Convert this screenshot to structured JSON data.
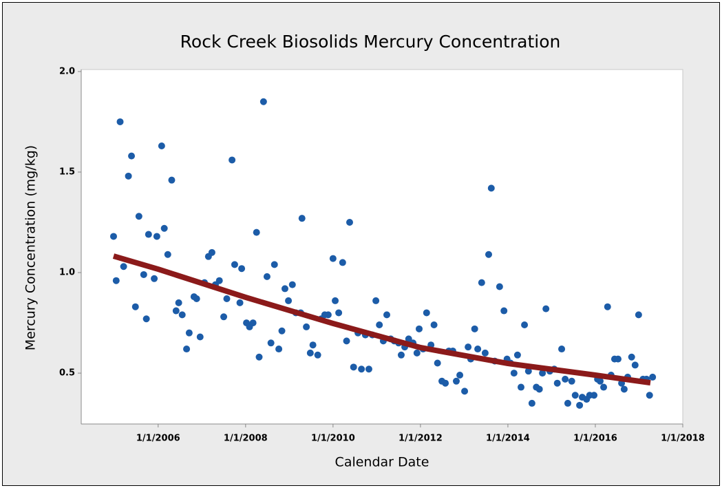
{
  "chart_data": {
    "type": "scatter",
    "title": "Rock Creek Biosolids Mercury Concentration",
    "x_label": "Calendar Date",
    "y_label": "Mercury Concentration (mg/kg)",
    "xlim": [
      2004.24,
      2018
    ],
    "ylim": [
      0.247,
      2.01
    ],
    "xticks": [
      {
        "value": 2006,
        "label": "1/1/2006"
      },
      {
        "value": 2008,
        "label": "1/1/2008"
      },
      {
        "value": 2010,
        "label": "1/1/2010"
      },
      {
        "value": 2012,
        "label": "1/1/2012"
      },
      {
        "value": 2014,
        "label": "1/1/2014"
      },
      {
        "value": 2016,
        "label": "1/1/2016"
      },
      {
        "value": 2018,
        "label": "1/1/2018"
      }
    ],
    "yticks": [
      {
        "value": 0.5,
        "label": "0.5"
      },
      {
        "value": 1.0,
        "label": "1.0"
      },
      {
        "value": 1.5,
        "label": "1.5"
      },
      {
        "value": 2.0,
        "label": "2.0"
      }
    ],
    "points": {
      "color": "#1c5ca8",
      "x": [
        2004.98,
        2005.04,
        2005.13,
        2005.21,
        2005.32,
        2005.39,
        2005.48,
        2005.56,
        2005.67,
        2005.73,
        2005.78,
        2005.91,
        2005.97,
        2006.08,
        2006.14,
        2006.22,
        2006.31,
        2006.41,
        2006.47,
        2006.55,
        2006.65,
        2006.71,
        2006.82,
        2006.88,
        2006.96,
        2007.06,
        2007.15,
        2007.23,
        2007.31,
        2007.4,
        2007.5,
        2007.57,
        2007.69,
        2007.75,
        2007.87,
        2007.91,
        2008.02,
        2008.09,
        2008.17,
        2008.25,
        2008.31,
        2008.41,
        2008.49,
        2008.58,
        2008.66,
        2008.76,
        2008.83,
        2008.9,
        2008.98,
        2009.07,
        2009.15,
        2009.26,
        2009.29,
        2009.39,
        2009.48,
        2009.54,
        2009.65,
        2009.73,
        2009.81,
        2009.89,
        2010.0,
        2010.05,
        2010.13,
        2010.22,
        2010.31,
        2010.38,
        2010.47,
        2010.57,
        2010.65,
        2010.74,
        2010.82,
        2010.9,
        2010.98,
        2011.06,
        2011.15,
        2011.23,
        2011.32,
        2011.4,
        2011.5,
        2011.56,
        2011.64,
        2011.73,
        2011.83,
        2011.92,
        2011.97,
        2012.06,
        2012.14,
        2012.24,
        2012.31,
        2012.39,
        2012.49,
        2012.57,
        2012.65,
        2012.74,
        2012.82,
        2012.9,
        2013.01,
        2013.09,
        2013.15,
        2013.24,
        2013.31,
        2013.4,
        2013.48,
        2013.56,
        2013.62,
        2013.7,
        2013.81,
        2013.91,
        2013.98,
        2014.06,
        2014.14,
        2014.22,
        2014.3,
        2014.38,
        2014.47,
        2014.55,
        2014.65,
        2014.72,
        2014.79,
        2014.87,
        2014.96,
        2015.06,
        2015.13,
        2015.23,
        2015.31,
        2015.37,
        2015.46,
        2015.54,
        2015.64,
        2015.7,
        2015.8,
        2015.87,
        2015.97,
        2016.05,
        2016.11,
        2016.19,
        2016.28,
        2016.36,
        2016.44,
        2016.52,
        2016.6,
        2016.66,
        2016.74,
        2016.83,
        2016.91,
        2016.99,
        2017.09,
        2017.17,
        2017.24,
        2017.31
      ],
      "values": [
        1.18,
        0.96,
        1.75,
        1.03,
        1.48,
        1.58,
        0.83,
        1.28,
        0.99,
        0.77,
        1.19,
        0.97,
        1.18,
        1.63,
        1.22,
        1.09,
        1.46,
        0.81,
        0.85,
        0.79,
        0.62,
        0.7,
        0.88,
        0.87,
        0.68,
        0.95,
        1.08,
        1.1,
        0.94,
        0.96,
        0.78,
        0.87,
        1.56,
        1.04,
        0.85,
        1.02,
        0.75,
        0.73,
        0.75,
        1.2,
        0.58,
        1.85,
        0.98,
        0.65,
        1.04,
        0.62,
        0.71,
        0.92,
        0.86,
        0.94,
        0.8,
        0.8,
        1.27,
        0.73,
        0.6,
        0.64,
        0.59,
        0.77,
        0.79,
        0.79,
        1.07,
        0.86,
        0.8,
        1.05,
        0.66,
        1.25,
        0.53,
        0.7,
        0.52,
        0.69,
        0.52,
        0.69,
        0.86,
        0.74,
        0.66,
        0.79,
        0.67,
        0.66,
        0.65,
        0.59,
        0.63,
        0.67,
        0.65,
        0.6,
        0.72,
        0.62,
        0.8,
        0.64,
        0.74,
        0.55,
        0.46,
        0.45,
        0.61,
        0.61,
        0.46,
        0.49,
        0.41,
        0.63,
        0.57,
        0.72,
        0.62,
        0.95,
        0.6,
        1.09,
        1.42,
        0.56,
        0.93,
        0.81,
        0.57,
        0.55,
        0.5,
        0.59,
        0.43,
        0.74,
        0.51,
        0.35,
        0.43,
        0.42,
        0.5,
        0.82,
        0.51,
        0.52,
        0.45,
        0.62,
        0.47,
        0.35,
        0.46,
        0.39,
        0.34,
        0.38,
        0.37,
        0.39,
        0.39,
        0.47,
        0.46,
        0.43,
        0.83,
        0.49,
        0.57,
        0.57,
        0.45,
        0.42,
        0.48,
        0.58,
        0.54,
        0.79,
        0.47,
        0.47,
        0.39,
        0.48
      ]
    },
    "trend": {
      "color": "#8b1a1a",
      "x": [
        2004.98,
        2006,
        2008,
        2010,
        2012,
        2014,
        2016,
        2017.26
      ],
      "values": [
        1.082,
        1.017,
        0.877,
        0.747,
        0.627,
        0.548,
        0.49,
        0.452
      ]
    }
  }
}
